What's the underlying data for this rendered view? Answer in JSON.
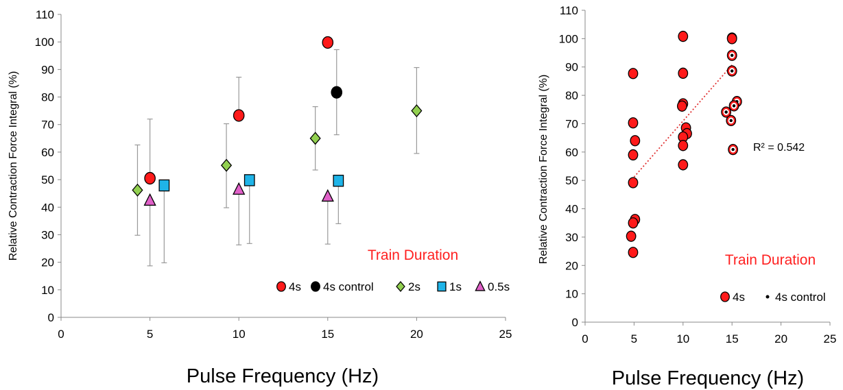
{
  "colors": {
    "red": "#ff1a1a",
    "black": "#000000",
    "green": "#92d050",
    "blue": "#1fb4e8",
    "magenta": "#e060c8",
    "annotation": "#ff2020",
    "trendline": "#e03030",
    "errorbar": "#999999"
  },
  "chart_data": [
    {
      "type": "scatter",
      "xlabel": "Pulse Frequency (Hz)",
      "ylabel": "Relative Contraction Force Integral (%)",
      "xlim": [
        0,
        25
      ],
      "ylim": [
        0,
        110
      ],
      "xticks": [
        0,
        5,
        10,
        15,
        20,
        25
      ],
      "yticks": [
        0,
        10,
        20,
        30,
        40,
        50,
        60,
        70,
        80,
        90,
        100,
        110
      ],
      "annotation": "Train Duration",
      "grid": false,
      "legend": "bottom-right",
      "series": [
        {
          "name": "4s",
          "marker": "circle",
          "color": "red",
          "points": [
            {
              "x": 5,
              "y": 50.5,
              "lo": null,
              "hi": 72
            },
            {
              "x": 10,
              "y": 73.3,
              "lo": null,
              "hi": 87.2
            },
            {
              "x": 15,
              "y": 99.8,
              "lo": null,
              "hi": null
            }
          ]
        },
        {
          "name": "4s control",
          "marker": "circle",
          "color": "black",
          "points": [
            {
              "x": 15.5,
              "y": 81.7,
              "lo": 66.3,
              "hi": 97.2
            }
          ]
        },
        {
          "name": "2s",
          "marker": "diamond",
          "color": "green",
          "points": [
            {
              "x": 4.3,
              "y": 46.2,
              "lo": 29.8,
              "hi": 62.6
            },
            {
              "x": 9.3,
              "y": 55.2,
              "lo": 39.8,
              "hi": 70.3
            },
            {
              "x": 14.3,
              "y": 65,
              "lo": 53.5,
              "hi": 76.5
            },
            {
              "x": 20,
              "y": 75,
              "lo": 59.5,
              "hi": 90.7
            }
          ]
        },
        {
          "name": "1s",
          "marker": "square",
          "color": "blue",
          "points": [
            {
              "x": 5.8,
              "y": 47.9,
              "lo": 19.8,
              "hi": null
            },
            {
              "x": 10.6,
              "y": 49.8,
              "lo": 26.8,
              "hi": null
            },
            {
              "x": 15.6,
              "y": 49.6,
              "lo": 34,
              "hi": null
            }
          ]
        },
        {
          "name": "0.5s",
          "marker": "triangle",
          "color": "magenta",
          "points": [
            {
              "x": 5,
              "y": 42.5,
              "lo": 18.7,
              "hi": null
            },
            {
              "x": 10,
              "y": 46.5,
              "lo": 26.3,
              "hi": null
            },
            {
              "x": 15,
              "y": 44,
              "lo": 26.6,
              "hi": null
            }
          ]
        }
      ]
    },
    {
      "type": "scatter",
      "xlabel": "Pulse Frequency (Hz)",
      "ylabel": "Relative Contraction Force Integral (%)",
      "xlim": [
        0,
        25
      ],
      "ylim": [
        0,
        110
      ],
      "xticks": [
        0,
        5,
        10,
        15,
        20,
        25
      ],
      "yticks": [
        0,
        10,
        20,
        30,
        40,
        50,
        60,
        70,
        80,
        90,
        100,
        110
      ],
      "annotation": "Train Duration",
      "r2_label": "R² = 0.542",
      "trendline": {
        "x": [
          5,
          15
        ],
        "y": [
          51.2,
          90.7
        ]
      },
      "grid": false,
      "legend": "bottom-right",
      "series": [
        {
          "name": "4s",
          "marker": "circle",
          "color": "red",
          "points": [
            {
              "x": 4.9,
              "y": 87.7
            },
            {
              "x": 4.9,
              "y": 70.3
            },
            {
              "x": 5.1,
              "y": 64
            },
            {
              "x": 4.9,
              "y": 59
            },
            {
              "x": 4.9,
              "y": 49.2
            },
            {
              "x": 5.1,
              "y": 36.2
            },
            {
              "x": 4.9,
              "y": 35
            },
            {
              "x": 4.7,
              "y": 30.3
            },
            {
              "x": 4.9,
              "y": 24.6
            },
            {
              "x": 10,
              "y": 100.8
            },
            {
              "x": 10,
              "y": 87.8
            },
            {
              "x": 10,
              "y": 77
            },
            {
              "x": 9.9,
              "y": 76.2
            },
            {
              "x": 10.3,
              "y": 68.5
            },
            {
              "x": 10.4,
              "y": 66.5
            },
            {
              "x": 10,
              "y": 65.3
            },
            {
              "x": 10,
              "y": 62.3
            },
            {
              "x": 10,
              "y": 55.5
            },
            {
              "x": 15,
              "y": 100.2
            },
            {
              "x": 15,
              "y": 100
            }
          ]
        },
        {
          "name": "4s control",
          "marker": "dot",
          "color": "black",
          "points": [
            {
              "x": 15,
              "y": 94.1
            },
            {
              "x": 15,
              "y": 88.6
            },
            {
              "x": 15.5,
              "y": 77.8
            },
            {
              "x": 15.2,
              "y": 76.3
            },
            {
              "x": 14.4,
              "y": 74.1
            },
            {
              "x": 14.9,
              "y": 71.1
            },
            {
              "x": 15.1,
              "y": 60.9
            }
          ]
        }
      ]
    }
  ]
}
